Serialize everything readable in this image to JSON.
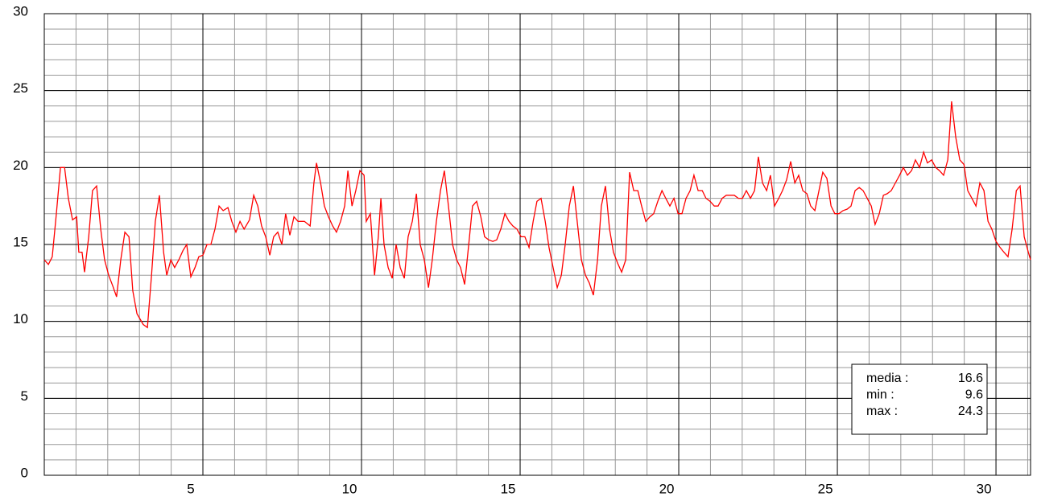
{
  "chart_data": {
    "type": "line",
    "x": [
      0.38,
      0.51,
      0.63,
      0.76,
      0.89,
      1.02,
      1.14,
      1.27,
      1.4,
      1.47,
      1.57,
      1.65,
      1.78,
      1.9,
      2.03,
      2.16,
      2.28,
      2.41,
      2.54,
      2.66,
      2.79,
      2.92,
      3.05,
      3.17,
      3.3,
      3.5,
      3.63,
      3.76,
      3.88,
      4.01,
      4.14,
      4.24,
      4.37,
      4.49,
      4.62,
      4.75,
      4.87,
      5.0,
      5.13,
      5.25,
      5.38,
      5.51,
      5.63,
      5.76,
      5.89,
      6.02,
      6.17,
      6.29,
      6.42,
      6.55,
      6.68,
      6.85,
      6.98,
      7.11,
      7.23,
      7.36,
      7.49,
      7.61,
      7.74,
      7.87,
      7.99,
      8.12,
      8.25,
      8.38,
      8.58,
      8.76,
      8.88,
      8.96,
      9.09,
      9.21,
      9.34,
      9.47,
      9.59,
      9.72,
      9.85,
      9.95,
      10.08,
      10.2,
      10.33,
      10.46,
      10.53,
      10.66,
      10.79,
      10.91,
      10.99,
      11.09,
      11.22,
      11.35,
      11.47,
      11.6,
      11.73,
      11.85,
      11.98,
      12.11,
      12.23,
      12.36,
      12.49,
      12.61,
      12.74,
      12.87,
      12.99,
      13.12,
      13.25,
      13.38,
      13.5,
      13.63,
      13.76,
      13.88,
      14.01,
      14.14,
      14.26,
      14.39,
      14.52,
      14.64,
      14.77,
      14.9,
      15.03,
      15.15,
      15.28,
      15.41,
      15.53,
      15.66,
      15.79,
      15.91,
      16.04,
      16.17,
      16.29,
      16.42,
      16.55,
      16.68,
      16.8,
      16.93,
      17.06,
      17.18,
      17.31,
      17.44,
      17.56,
      17.69,
      17.82,
      17.94,
      18.07,
      18.2,
      18.32,
      18.45,
      18.58,
      18.71,
      18.83,
      18.96,
      19.09,
      19.21,
      19.34,
      19.47,
      19.59,
      19.72,
      19.85,
      19.97,
      20.1,
      20.23,
      20.36,
      20.48,
      20.61,
      20.74,
      20.86,
      20.99,
      21.12,
      21.24,
      21.37,
      21.5,
      21.62,
      21.75,
      21.88,
      22.01,
      22.13,
      22.26,
      22.39,
      22.51,
      22.64,
      22.77,
      22.89,
      23.02,
      23.15,
      23.27,
      23.4,
      23.53,
      23.65,
      23.78,
      23.91,
      24.04,
      24.16,
      24.29,
      24.42,
      24.54,
      24.67,
      24.8,
      24.92,
      25.05,
      25.18,
      25.3,
      25.43,
      25.56,
      25.69,
      25.81,
      25.94,
      26.07,
      26.19,
      26.32,
      26.45,
      26.57,
      26.7,
      26.83,
      26.95,
      27.08,
      27.21,
      27.34,
      27.46,
      27.59,
      27.72,
      27.84,
      27.97,
      28.1,
      28.22,
      28.35,
      28.48,
      28.6,
      28.73,
      28.86,
      28.98,
      29.11,
      29.24,
      29.37,
      29.49,
      29.62,
      29.75,
      29.87,
      30.0,
      30.13,
      30.25,
      30.38,
      30.51,
      30.63,
      30.76,
      30.89,
      31.02,
      31.14,
      31.27,
      31.4,
      31.47
    ],
    "series": [
      {
        "color": "#ff0000",
        "values": [
          14,
          13.7,
          14.2,
          17,
          20,
          20,
          18,
          16.6,
          16.8,
          14.5,
          14.5,
          13.2,
          15.5,
          18.5,
          18.8,
          16,
          14,
          13,
          12.3,
          11.6,
          14,
          15.8,
          15.5,
          12,
          10.5,
          9.8,
          9.6,
          13,
          16.5,
          18.2,
          14.5,
          13,
          14,
          13.5,
          14,
          14.6,
          15,
          12.9,
          13.5,
          14.2,
          14.3,
          15,
          15,
          16,
          17.5,
          17.2,
          17.4,
          16.5,
          15.8,
          16.5,
          16,
          16.6,
          18.2,
          17.5,
          16.2,
          15.5,
          14.3,
          15.5,
          15.8,
          15,
          17,
          15.6,
          16.8,
          16.5,
          16.5,
          16.2,
          19,
          20.3,
          19,
          17.5,
          16.8,
          16.2,
          15.8,
          16.5,
          17.5,
          19.8,
          17.5,
          18.5,
          19.8,
          19.5,
          16.5,
          17,
          13,
          15.5,
          18,
          15,
          13.5,
          12.8,
          15,
          13.5,
          12.8,
          15.5,
          16.5,
          18.3,
          15,
          14,
          12.2,
          14,
          16.5,
          18.5,
          19.8,
          17.5,
          15,
          14,
          13.5,
          12.4,
          15,
          17.5,
          17.8,
          16.8,
          15.5,
          15.3,
          15.2,
          15.3,
          16,
          17,
          16.5,
          16.2,
          16,
          15.5,
          15.5,
          14.8,
          16.5,
          17.8,
          18,
          16.5,
          14.8,
          13.5,
          12.2,
          13,
          15,
          17.5,
          18.8,
          16.5,
          14,
          13,
          12.5,
          11.7,
          14,
          17.5,
          18.8,
          16,
          14.5,
          13.8,
          13.2,
          14,
          19.7,
          18.5,
          18.5,
          17.5,
          16.5,
          16.8,
          17,
          17.8,
          18.5,
          18,
          17.5,
          18,
          17,
          17,
          18,
          18.5,
          19.5,
          18.5,
          18.5,
          18,
          17.8,
          17.5,
          17.5,
          18,
          18.2,
          18.2,
          18.2,
          18,
          18,
          18.5,
          18,
          18.5,
          20.7,
          19,
          18.5,
          19.5,
          17.5,
          18,
          18.5,
          19.2,
          20.4,
          19,
          19.5,
          18.5,
          18.3,
          17.5,
          17.2,
          18.5,
          19.7,
          19.3,
          17.5,
          17,
          17,
          17.2,
          17.3,
          17.5,
          18.5,
          18.7,
          18.5,
          18,
          17.5,
          16.3,
          17,
          18.2,
          18.3,
          18.5,
          19,
          19.5,
          20,
          19.5,
          19.8,
          20.5,
          20,
          21,
          20.3,
          20.5,
          20,
          19.8,
          19.5,
          20.5,
          24.3,
          22,
          20.5,
          20.2,
          18.5,
          18,
          17.5,
          19,
          18.5,
          16.5,
          16,
          15.2,
          14.8,
          14.5,
          14.2,
          16,
          18.5,
          18.8,
          15.5,
          14.5,
          14
        ]
      }
    ],
    "xlim": [
      0.38,
      31.47
    ],
    "xticks": [
      5,
      10,
      15,
      20,
      25,
      30
    ],
    "ylim": [
      0,
      30
    ],
    "yticks": [
      0,
      5,
      10,
      15,
      20,
      25,
      30
    ],
    "grid": true,
    "stats": [
      {
        "label": "media :",
        "value": 16.6
      },
      {
        "label": "min :",
        "value": 9.6
      },
      {
        "label": "max :",
        "value": 24.3
      }
    ]
  }
}
